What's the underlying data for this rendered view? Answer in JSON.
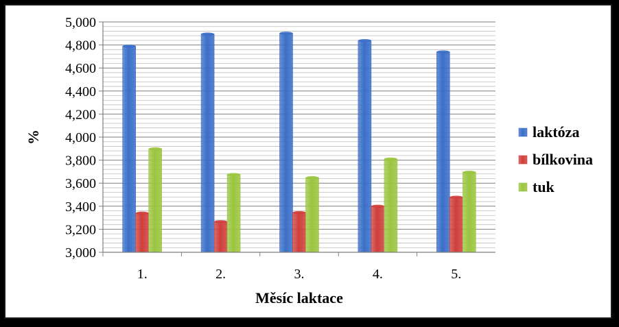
{
  "chart_data": {
    "type": "bar",
    "categories": [
      "1.",
      "2.",
      "3.",
      "4.",
      "5."
    ],
    "series": [
      {
        "name": "laktóza",
        "values": [
          4.79,
          4.895,
          4.902,
          4.838,
          4.74
        ],
        "color": "#3b6fc8"
      },
      {
        "name": "bílkovina",
        "values": [
          3.34,
          3.265,
          3.345,
          3.4,
          3.478
        ],
        "color": "#cf3f3b"
      },
      {
        "name": "tuk",
        "values": [
          3.898,
          3.675,
          3.648,
          3.81,
          3.695
        ],
        "color": "#9bc53f"
      }
    ],
    "xlabel": "Měsíc laktace",
    "ylabel": "%",
    "ylim": [
      3.0,
      5.0
    ],
    "yticks": [
      3.0,
      3.2,
      3.4,
      3.6,
      3.8,
      4.0,
      4.2,
      4.4,
      4.6,
      4.8,
      5.0
    ],
    "ytick_labels": [
      "3,000",
      "3,200",
      "3,400",
      "3,600",
      "3,800",
      "4,000",
      "4,200",
      "4,400",
      "4,600",
      "4,800",
      "5,000"
    ],
    "grid": true,
    "legend_position": "right"
  }
}
